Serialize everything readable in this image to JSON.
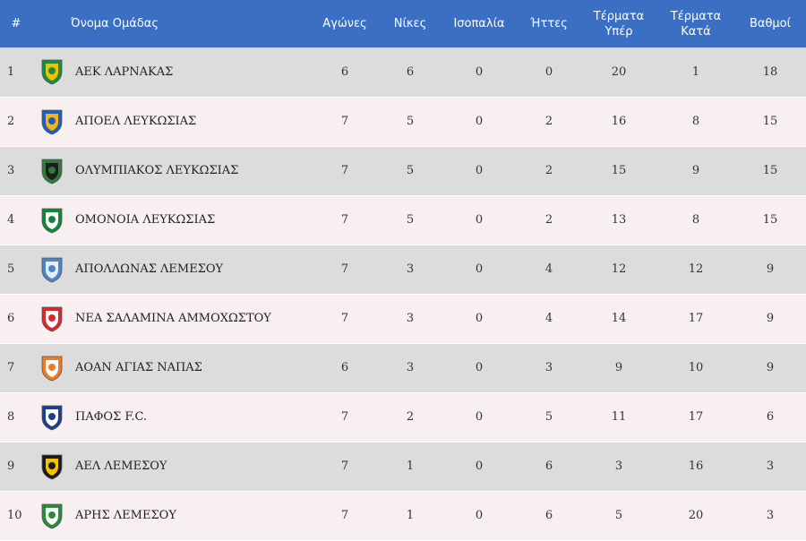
{
  "headers": {
    "pos": "#",
    "name": "Όνομα Ομάδας",
    "played": "Αγώνες",
    "wins": "Νίκες",
    "draws": "Ισοπαλία",
    "losses": "Ήττες",
    "gf_line1": "Τέρματα",
    "gf_line2": "Υπέρ",
    "ga_line1": "Τέρματα",
    "ga_line2": "Κατά",
    "points": "Βαθμοί"
  },
  "rows": [
    {
      "pos": "1",
      "name": "ΑΕΚ ΛΑΡΝΑΚΑΣ",
      "played": "6",
      "wins": "6",
      "draws": "0",
      "losses": "0",
      "gf": "20",
      "ga": "1",
      "points": "18",
      "logo": "aek-larnaca-logo",
      "colors": [
        "#f2c200",
        "#1f8b3a"
      ]
    },
    {
      "pos": "2",
      "name": "ΑΠΟΕΛ ΛΕΥΚΩΣΙΑΣ",
      "played": "7",
      "wins": "5",
      "draws": "0",
      "losses": "2",
      "gf": "16",
      "ga": "8",
      "points": "15",
      "logo": "apoel-logo",
      "colors": [
        "#f5b31b",
        "#1f5fb8"
      ]
    },
    {
      "pos": "3",
      "name": "ΟΛΥΜΠΙΑΚΟΣ ΛΕΥΚΩΣΙΑΣ",
      "played": "7",
      "wins": "5",
      "draws": "0",
      "losses": "2",
      "gf": "15",
      "ga": "9",
      "points": "15",
      "logo": "olympiakos-nicosia-logo",
      "colors": [
        "#1d1d1d",
        "#2f7a3d"
      ]
    },
    {
      "pos": "4",
      "name": "ΟΜΟΝΟΙΑ ΛΕΥΚΩΣΙΑΣ",
      "played": "7",
      "wins": "5",
      "draws": "0",
      "losses": "2",
      "gf": "13",
      "ga": "8",
      "points": "15",
      "logo": "omonoia-logo",
      "colors": [
        "#ffffff",
        "#14853a"
      ]
    },
    {
      "pos": "5",
      "name": "ΑΠΟΛΛΩΝΑΣ ΛΕΜΕΣΟΥ",
      "played": "7",
      "wins": "3",
      "draws": "0",
      "losses": "4",
      "gf": "12",
      "ga": "12",
      "points": "9",
      "logo": "apollon-logo",
      "colors": [
        "#e6eef8",
        "#4a86c8"
      ]
    },
    {
      "pos": "6",
      "name": "ΝΕΑ ΣΑΛΑΜΙΝΑ ΑΜΜΟΧΩΣΤΟΥ",
      "played": "7",
      "wins": "3",
      "draws": "0",
      "losses": "4",
      "gf": "14",
      "ga": "17",
      "points": "9",
      "logo": "nea-salamis-logo",
      "colors": [
        "#ffffff",
        "#d62b2b"
      ]
    },
    {
      "pos": "7",
      "name": "ΑΟΑΝ ΑΓΙΑΣ ΝΑΠΑΣ",
      "played": "6",
      "wins": "3",
      "draws": "0",
      "losses": "3",
      "gf": "9",
      "ga": "10",
      "points": "9",
      "logo": "ayia-napa-logo",
      "colors": [
        "#ffffff",
        "#ef7a22"
      ]
    },
    {
      "pos": "8",
      "name": "ΠΑΦΟΣ F.C.",
      "played": "7",
      "wins": "2",
      "draws": "0",
      "losses": "5",
      "gf": "11",
      "ga": "17",
      "points": "6",
      "logo": "pafos-fc-logo",
      "colors": [
        "#ffffff",
        "#1c3f8f"
      ]
    },
    {
      "pos": "9",
      "name": "ΑΕΛ ΛΕΜΕΣΟΥ",
      "played": "7",
      "wins": "1",
      "draws": "0",
      "losses": "6",
      "gf": "3",
      "ga": "16",
      "points": "3",
      "logo": "ael-limassol-logo",
      "colors": [
        "#f3c200",
        "#1a1a1a"
      ]
    },
    {
      "pos": "10",
      "name": "ΑΡΗΣ ΛΕΜΕΣΟΥ",
      "played": "7",
      "wins": "1",
      "draws": "0",
      "losses": "6",
      "gf": "5",
      "ga": "20",
      "points": "3",
      "logo": "aris-limassol-logo",
      "colors": [
        "#ffffff",
        "#2a8a3e"
      ]
    }
  ],
  "colors": {
    "header_bg": "#3a6fc4",
    "row_odd": "#dcdcdc",
    "row_even": "#f8eff0"
  }
}
